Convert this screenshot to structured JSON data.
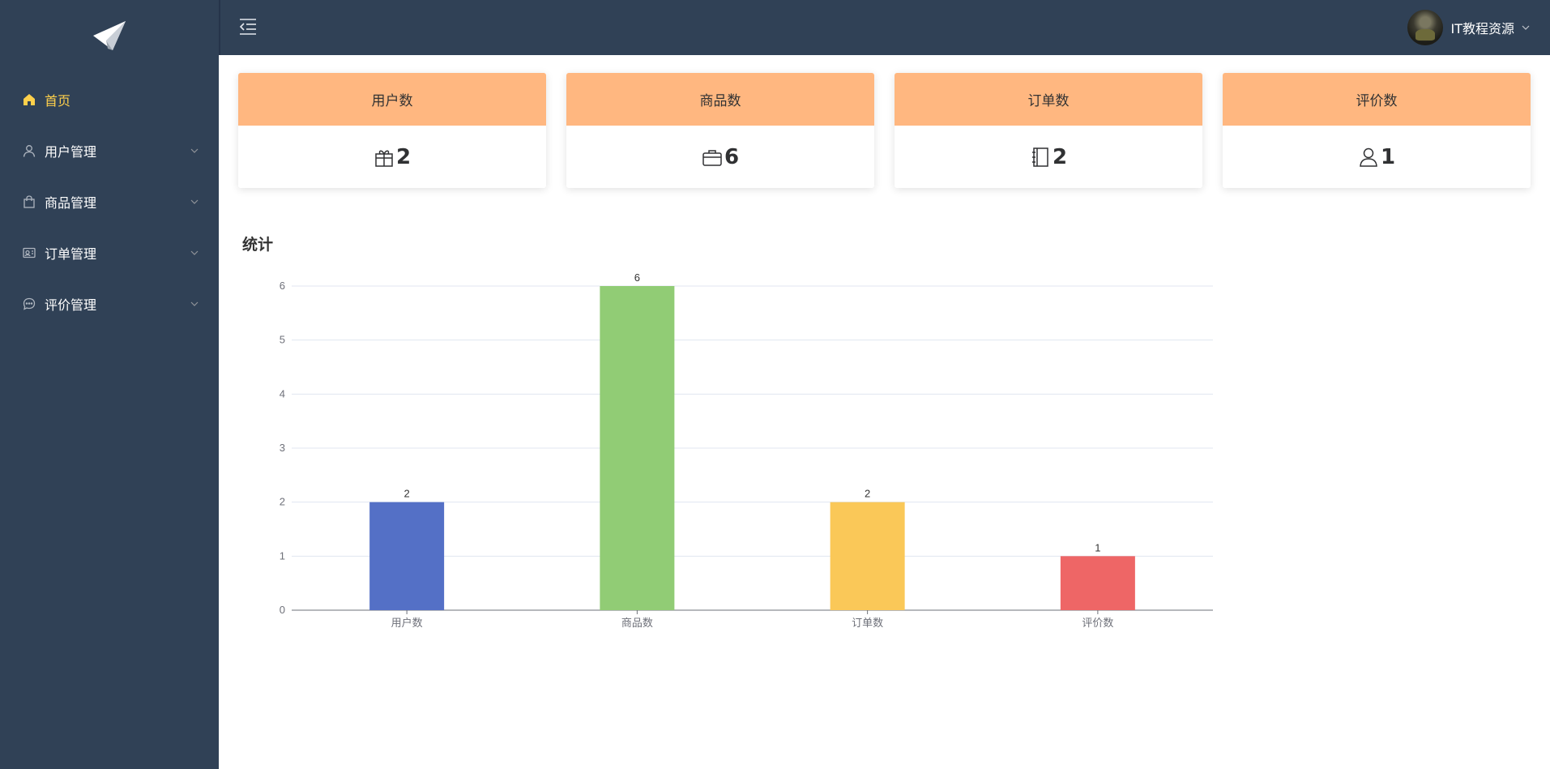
{
  "sidebar": {
    "logo_icon": "paper-plane-icon",
    "items": [
      {
        "label": "首页",
        "icon": "home-icon",
        "active": true,
        "has_submenu": false
      },
      {
        "label": "用户管理",
        "icon": "user-icon",
        "active": false,
        "has_submenu": true
      },
      {
        "label": "商品管理",
        "icon": "shopping-bag-icon",
        "active": false,
        "has_submenu": true
      },
      {
        "label": "订单管理",
        "icon": "order-icon",
        "active": false,
        "has_submenu": true
      },
      {
        "label": "评价管理",
        "icon": "chat-bubble-icon",
        "active": false,
        "has_submenu": true
      }
    ]
  },
  "header": {
    "collapse_icon": "menu-fold-icon",
    "username": "IT教程资源"
  },
  "stats": [
    {
      "label": "用户数",
      "value": "2",
      "icon": "gift-icon"
    },
    {
      "label": "商品数",
      "value": "6",
      "icon": "briefcase-icon"
    },
    {
      "label": "订单数",
      "value": "2",
      "icon": "notebook-icon"
    },
    {
      "label": "评价数",
      "value": "1",
      "icon": "user-icon"
    }
  ],
  "chart_title": "统计",
  "colors": {
    "sidebar_bg": "#304156",
    "active_text": "#ffd04b",
    "card_header": "#ffb780"
  },
  "chart_data": {
    "type": "bar",
    "title": "统计",
    "categories": [
      "用户数",
      "商品数",
      "订单数",
      "评价数"
    ],
    "values": [
      2,
      6,
      2,
      1
    ],
    "bar_colors": [
      "#5470c6",
      "#91cc75",
      "#fac858",
      "#ee6666"
    ],
    "ylim": [
      0,
      6
    ],
    "yticks": [
      0,
      1,
      2,
      3,
      4,
      5,
      6
    ],
    "xlabel": "",
    "ylabel": "",
    "grid": true,
    "data_labels": true
  }
}
